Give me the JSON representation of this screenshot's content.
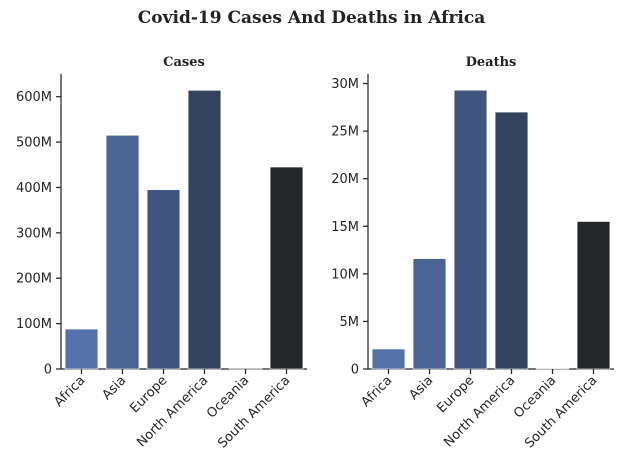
{
  "title": "Covid-19 Cases And Deaths in Africa",
  "chart_data": [
    {
      "type": "bar",
      "title": "Cases",
      "xlabel": "",
      "ylabel": "",
      "categories": [
        "Africa",
        "Asia",
        "Europe",
        "North America",
        "Oceania",
        "South America"
      ],
      "values": [
        88000000,
        515000000,
        395000000,
        614000000,
        2000000,
        445000000
      ],
      "colors": [
        "#5471ab",
        "#4a6494",
        "#3f5580",
        "#34445f",
        "#2b313b",
        "#24262a"
      ],
      "ylim": [
        0,
        650000000
      ],
      "yticks": [
        0,
        100000000,
        200000000,
        300000000,
        400000000,
        500000000,
        600000000
      ],
      "ytick_labels": [
        "0",
        "100M",
        "200M",
        "300M",
        "400M",
        "500M",
        "600M"
      ],
      "grid": false,
      "legend": "none"
    },
    {
      "type": "bar",
      "title": "Deaths",
      "xlabel": "",
      "ylabel": "",
      "categories": [
        "Africa",
        "Asia",
        "Europe",
        "North America",
        "Oceania",
        "South America"
      ],
      "values": [
        2100000,
        11600000,
        29300000,
        27000000,
        30000,
        15500000
      ],
      "colors": [
        "#5471ab",
        "#4a6494",
        "#3f5580",
        "#34445f",
        "#2b313b",
        "#24262a"
      ],
      "ylim": [
        0,
        31000000
      ],
      "yticks": [
        0,
        5000000,
        10000000,
        15000000,
        20000000,
        25000000,
        30000000
      ],
      "ytick_labels": [
        "0",
        "5M",
        "10M",
        "15M",
        "20M",
        "25M",
        "30M"
      ],
      "grid": false,
      "legend": "none"
    }
  ]
}
